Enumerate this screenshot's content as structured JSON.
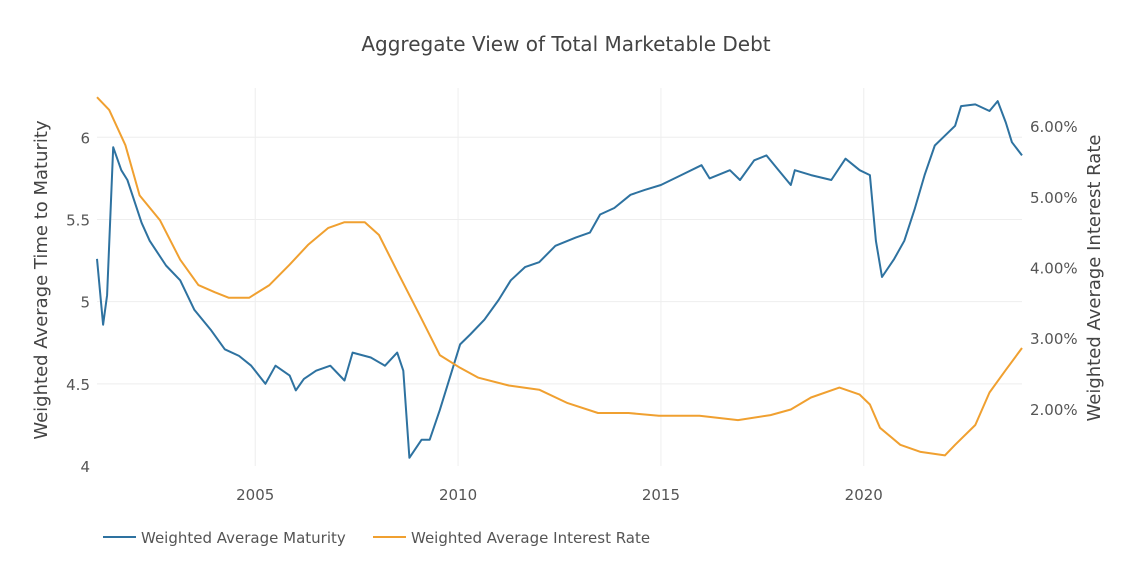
{
  "chart_data": {
    "type": "line",
    "title": "Aggregate View of Total Marketable Debt",
    "xlabel": "",
    "ylabel": "Weighted Average Time to Maturity",
    "y2label": "Weighted Average Interest Rate",
    "xlim": [
      2001.1,
      2023.9
    ],
    "ylim": [
      4,
      6.3
    ],
    "y2lim": [
      1.19,
      6.54
    ],
    "x_ticks": [
      2005,
      2010,
      2015,
      2020
    ],
    "x_tick_labels": [
      "2005",
      "2010",
      "2015",
      "2020"
    ],
    "y_ticks": [
      4,
      4.5,
      5,
      5.5,
      6
    ],
    "y_tick_labels": [
      "4",
      "4.5",
      "5",
      "5.5",
      "6"
    ],
    "y2_ticks": [
      2,
      3,
      4,
      5,
      6
    ],
    "y2_tick_labels": [
      "2.00%",
      "3.00%",
      "4.00%",
      "5.00%",
      "6.00%"
    ],
    "grid": true,
    "legend": "bottom-left",
    "series": [
      {
        "name": "Weighted Average Maturity",
        "axis": "left",
        "color": "#2e72a0",
        "x": [
          2001.1,
          2001.25,
          2001.35,
          2001.5,
          2001.7,
          2001.85,
          2002.2,
          2002.4,
          2002.8,
          2003.15,
          2003.5,
          2003.9,
          2004.25,
          2004.6,
          2004.9,
          2005.25,
          2005.5,
          2005.85,
          2006.0,
          2006.2,
          2006.5,
          2006.85,
          2007.2,
          2007.4,
          2007.85,
          2008.2,
          2008.5,
          2008.65,
          2008.8,
          2009.1,
          2009.3,
          2009.55,
          2010.05,
          2010.3,
          2010.65,
          2011.0,
          2011.3,
          2011.65,
          2012.0,
          2012.4,
          2012.9,
          2013.25,
          2013.5,
          2013.85,
          2014.25,
          2014.6,
          2015.0,
          2015.5,
          2016.0,
          2016.2,
          2016.7,
          2016.95,
          2017.3,
          2017.6,
          2017.9,
          2018.2,
          2018.3,
          2018.7,
          2019.2,
          2019.55,
          2019.9,
          2020.15,
          2020.3,
          2020.45,
          2020.75,
          2021.0,
          2021.25,
          2021.5,
          2021.75,
          2022.0,
          2022.25,
          2022.4,
          2022.75,
          2023.1,
          2023.3,
          2023.5,
          2023.65,
          2023.9
        ],
        "y": [
          5.26,
          4.86,
          5.04,
          5.94,
          5.8,
          5.74,
          5.48,
          5.37,
          5.22,
          5.13,
          4.95,
          4.83,
          4.71,
          4.67,
          4.61,
          4.5,
          4.61,
          4.55,
          4.46,
          4.53,
          4.58,
          4.61,
          4.52,
          4.69,
          4.66,
          4.61,
          4.69,
          4.58,
          4.05,
          4.16,
          4.16,
          4.34,
          4.74,
          4.8,
          4.89,
          5.01,
          5.13,
          5.21,
          5.24,
          5.34,
          5.39,
          5.42,
          5.53,
          5.57,
          5.65,
          5.68,
          5.71,
          5.77,
          5.83,
          5.75,
          5.8,
          5.74,
          5.86,
          5.89,
          5.8,
          5.71,
          5.8,
          5.77,
          5.74,
          5.87,
          5.8,
          5.77,
          5.37,
          5.15,
          5.26,
          5.37,
          5.56,
          5.77,
          5.95,
          6.01,
          6.07,
          6.19,
          6.2,
          6.16,
          6.22,
          6.09,
          5.97,
          5.89
        ]
      },
      {
        "name": "Weighted Average Interest Rate",
        "axis": "right",
        "color": "#f0a030",
        "x": [
          2001.1,
          2001.4,
          2001.8,
          2002.15,
          2002.65,
          2003.15,
          2003.6,
          2004.0,
          2004.35,
          2004.85,
          2005.35,
          2005.85,
          2006.3,
          2006.8,
          2007.2,
          2007.7,
          2008.05,
          2008.55,
          2009.05,
          2009.55,
          2010.05,
          2010.5,
          2011.25,
          2012.0,
          2012.7,
          2013.45,
          2014.2,
          2014.95,
          2015.95,
          2016.9,
          2017.7,
          2018.2,
          2018.7,
          2019.4,
          2019.9,
          2020.15,
          2020.4,
          2020.9,
          2021.4,
          2022.0,
          2022.25,
          2022.75,
          2023.1,
          2023.5,
          2023.9
        ],
        "y": [
          6.41,
          6.23,
          5.73,
          5.02,
          4.67,
          4.11,
          3.75,
          3.65,
          3.57,
          3.57,
          3.75,
          4.04,
          4.32,
          4.56,
          4.64,
          4.64,
          4.46,
          3.89,
          3.33,
          2.76,
          2.58,
          2.44,
          2.33,
          2.27,
          2.08,
          1.94,
          1.94,
          1.9,
          1.9,
          1.84,
          1.91,
          1.99,
          2.16,
          2.3,
          2.2,
          2.06,
          1.73,
          1.49,
          1.39,
          1.34,
          1.49,
          1.77,
          2.23,
          2.55,
          2.86
        ]
      }
    ]
  }
}
